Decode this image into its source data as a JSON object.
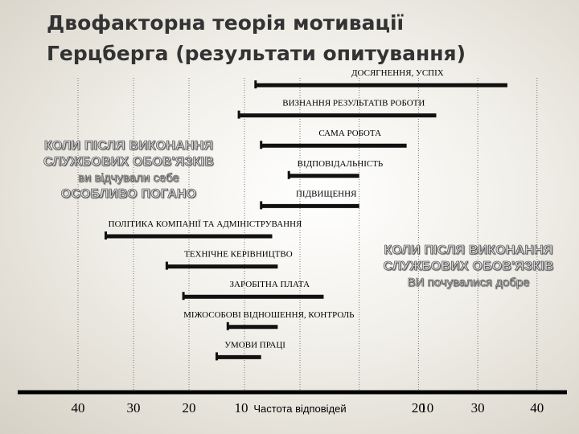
{
  "title": {
    "line1": "Двофакторна теорія мотивації",
    "line2": "Герцберга (результати опитування)"
  },
  "notes": {
    "left": {
      "line1": "КОЛИ ПІСЛЯ ВИКОНАННЯ",
      "line2": "СЛУЖБОВИХ ОБОВ'ЯЗКІВ",
      "line3": "ви відчували себе",
      "line4": "ОСОБЛИВО ПОГАНО"
    },
    "right": {
      "line1": "КОЛИ ПІСЛЯ ВИКОНАННЯ",
      "line2": "СЛУЖБОВИХ ОБОВ'ЯЗКІВ",
      "line3": "ВИ почувалися добре"
    }
  },
  "chart_data": {
    "type": "bar",
    "orientation": "horizontal-diverging",
    "xlabel": "Частота відповідей",
    "x_ticks": [
      "40",
      "30",
      "20",
      "10",
      "10",
      "20",
      "30",
      "40"
    ],
    "xlim": [
      -40,
      40
    ],
    "grid": true,
    "series": [
      {
        "label": "ДОСЯГНЕННЯ, УСПІХ",
        "from": -8,
        "to": 35
      },
      {
        "label": "ВИЗНАННЯ РЕЗУЛЬТАТІВ РОБОТИ",
        "from": -11,
        "to": 23
      },
      {
        "label": "САМА РОБОТА",
        "from": -7,
        "to": 18
      },
      {
        "label": "ВІДПОВІДАЛЬНІСТЬ",
        "from": -2,
        "to": 10
      },
      {
        "label": "ПІДВИЩЕННЯ",
        "from": -7,
        "to": 10
      },
      {
        "label": "ПОЛІТИКА КОМПАНІЇ ТА АДМІНІСТРУВАННЯ",
        "from": -35,
        "to": -5
      },
      {
        "label": "ТЕХНІЧНЕ КЕРІВНИЦТВО",
        "from": -24,
        "to": -4
      },
      {
        "label": "ЗАРОБІТНА ПЛАТА",
        "from": -21,
        "to": 4
      },
      {
        "label": "МІЖОСОБОВІ ВІДНОШЕННЯ, КОНТРОЛЬ",
        "from": -13,
        "to": -4
      },
      {
        "label": "УМОВИ ПРАЦІ",
        "from": -15,
        "to": -7
      }
    ]
  }
}
